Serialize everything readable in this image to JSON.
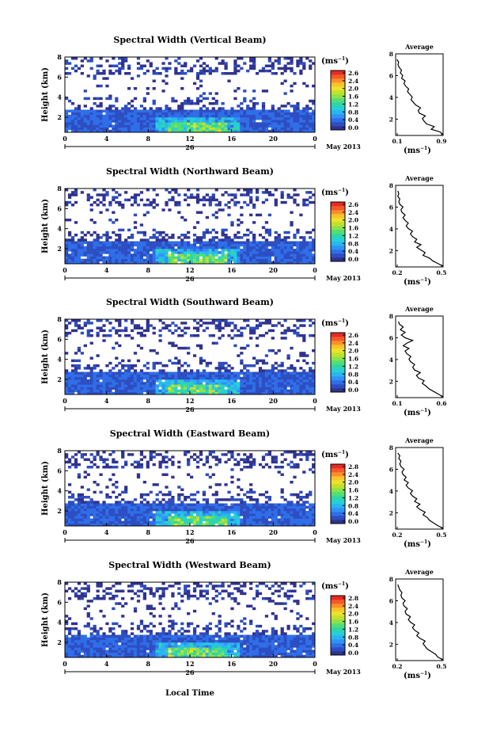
{
  "colormap_hex": [
    "#30338f",
    "#2d4ec2",
    "#2f6ee8",
    "#2f93f5",
    "#2ab5f2",
    "#26d0d6",
    "#2ed6a6",
    "#52de77",
    "#8be24a",
    "#c3e02d",
    "#ece32a",
    "#fbc22b",
    "#fb8f2a",
    "#f5582a",
    "#e62b25"
  ],
  "white_hex": "#ffffff",
  "panels": [
    {
      "title": "Spectral Width (Vertical Beam)",
      "unit_label": "(ms",
      "unit_exp": "−1",
      "colorbar_ticks": [
        "2.6",
        "2.4",
        "2.0",
        "1.6",
        "1.2",
        "0.8",
        "0.4",
        "0.0"
      ],
      "avg_title": "Average",
      "avg_x_ticks": [
        "0.1",
        "0.9"
      ],
      "avg_xlim": [
        0.1,
        0.9
      ],
      "avg_x_label": "(ms",
      "avg_x_exp": "−1",
      "avg_profile": [
        0.9,
        0.85,
        0.7,
        0.75,
        0.62,
        0.58,
        0.55,
        0.6,
        0.5,
        0.48,
        0.52,
        0.44,
        0.4,
        0.36,
        0.38,
        0.34,
        0.3,
        0.32,
        0.27,
        0.24,
        0.26,
        0.2,
        0.22,
        0.18,
        0.2,
        0.16,
        0.14,
        0.15,
        0.12
      ]
    },
    {
      "title": "Spectral Width (Northward Beam)",
      "unit_label": "(ms",
      "unit_exp": "−1",
      "colorbar_ticks": [
        "2.6",
        "2.4",
        "2.0",
        "1.6",
        "1.2",
        "0.8",
        "0.4",
        "0.0"
      ],
      "avg_title": "Average",
      "avg_x_ticks": [
        "0.2",
        "0.5"
      ],
      "avg_xlim": [
        0.1,
        0.55
      ],
      "avg_x_label": "(ms",
      "avg_x_exp": "−1",
      "avg_profile": [
        0.55,
        0.5,
        0.45,
        0.42,
        0.36,
        0.38,
        0.34,
        0.3,
        0.34,
        0.28,
        0.3,
        0.26,
        0.24,
        0.26,
        0.22,
        0.2,
        0.22,
        0.19,
        0.17,
        0.19,
        0.16,
        0.15,
        0.17,
        0.14,
        0.13,
        0.14,
        0.12,
        0.13,
        0.12
      ]
    },
    {
      "title": "Spectral Width (Southward Beam)",
      "unit_label": "(ms",
      "unit_exp": "−1",
      "colorbar_ticks": [
        "2.6",
        "2.4",
        "2.0",
        "1.6",
        "1.2",
        "0.8",
        "0.4",
        "0.0"
      ],
      "avg_title": "Average",
      "avg_x_ticks": [
        "0.1",
        "0.6"
      ],
      "avg_xlim": [
        0.1,
        0.6
      ],
      "avg_x_label": "(ms",
      "avg_x_exp": "−1",
      "avg_profile": [
        0.6,
        0.55,
        0.5,
        0.45,
        0.42,
        0.38,
        0.4,
        0.34,
        0.32,
        0.36,
        0.3,
        0.28,
        0.3,
        0.26,
        0.24,
        0.26,
        0.22,
        0.2,
        0.24,
        0.18,
        0.22,
        0.28,
        0.2,
        0.16,
        0.2,
        0.15,
        0.18,
        0.14,
        0.13
      ]
    },
    {
      "title": "Spectral Width (Eastward Beam)",
      "unit_label": "(ms",
      "unit_exp": "−1",
      "colorbar_ticks": [
        "2.8",
        "2.4",
        "2.0",
        "1.6",
        "1.2",
        "0.8",
        "0.4",
        "0.0"
      ],
      "avg_title": "Average",
      "avg_x_ticks": [
        "0.2",
        "0.5"
      ],
      "avg_xlim": [
        0.1,
        0.55
      ],
      "avg_x_label": "(ms",
      "avg_x_exp": "−1",
      "avg_profile": [
        0.55,
        0.5,
        0.46,
        0.42,
        0.4,
        0.36,
        0.38,
        0.33,
        0.3,
        0.33,
        0.28,
        0.3,
        0.26,
        0.24,
        0.26,
        0.22,
        0.2,
        0.22,
        0.18,
        0.2,
        0.17,
        0.16,
        0.18,
        0.15,
        0.14,
        0.15,
        0.13,
        0.14,
        0.12
      ]
    },
    {
      "title": "Spectral Width (Westward Beam)",
      "unit_label": "(ms",
      "unit_exp": "−1",
      "colorbar_ticks": [
        "2.8",
        "2.4",
        "2.0",
        "1.6",
        "1.2",
        "0.8",
        "0.4",
        "0.0"
      ],
      "avg_title": "Average",
      "avg_x_ticks": [
        "0.2",
        "0.5"
      ],
      "avg_xlim": [
        0.1,
        0.55
      ],
      "avg_x_label": "(ms",
      "avg_x_exp": "−1",
      "avg_profile": [
        0.55,
        0.5,
        0.48,
        0.44,
        0.4,
        0.38,
        0.36,
        0.38,
        0.33,
        0.3,
        0.32,
        0.28,
        0.26,
        0.28,
        0.24,
        0.22,
        0.24,
        0.2,
        0.19,
        0.21,
        0.18,
        0.17,
        0.19,
        0.16,
        0.15,
        0.16,
        0.14,
        0.13,
        0.12
      ]
    }
  ],
  "chart_data": {
    "type": "heatmap",
    "y_label": "Height (km)",
    "y_ticks": [
      "2",
      "4",
      "6",
      "8"
    ],
    "ylim_km": [
      0.5,
      8
    ],
    "x_ticks": [
      "0",
      "4",
      "8",
      "12",
      "16",
      "20",
      "0"
    ],
    "xlim_hours": [
      0,
      24
    ],
    "date_day": "26",
    "date_label": "May 2013",
    "x_label": "Local Time",
    "colorbar_range": [
      0.0,
      2.8
    ],
    "avg_y_ticks": [
      "2",
      "4",
      "6",
      "8"
    ],
    "series": [
      {
        "name": "Vertical Beam"
      },
      {
        "name": "Northward Beam"
      },
      {
        "name": "Southward Beam"
      },
      {
        "name": "Eastward Beam"
      },
      {
        "name": "Westward Beam"
      }
    ]
  }
}
